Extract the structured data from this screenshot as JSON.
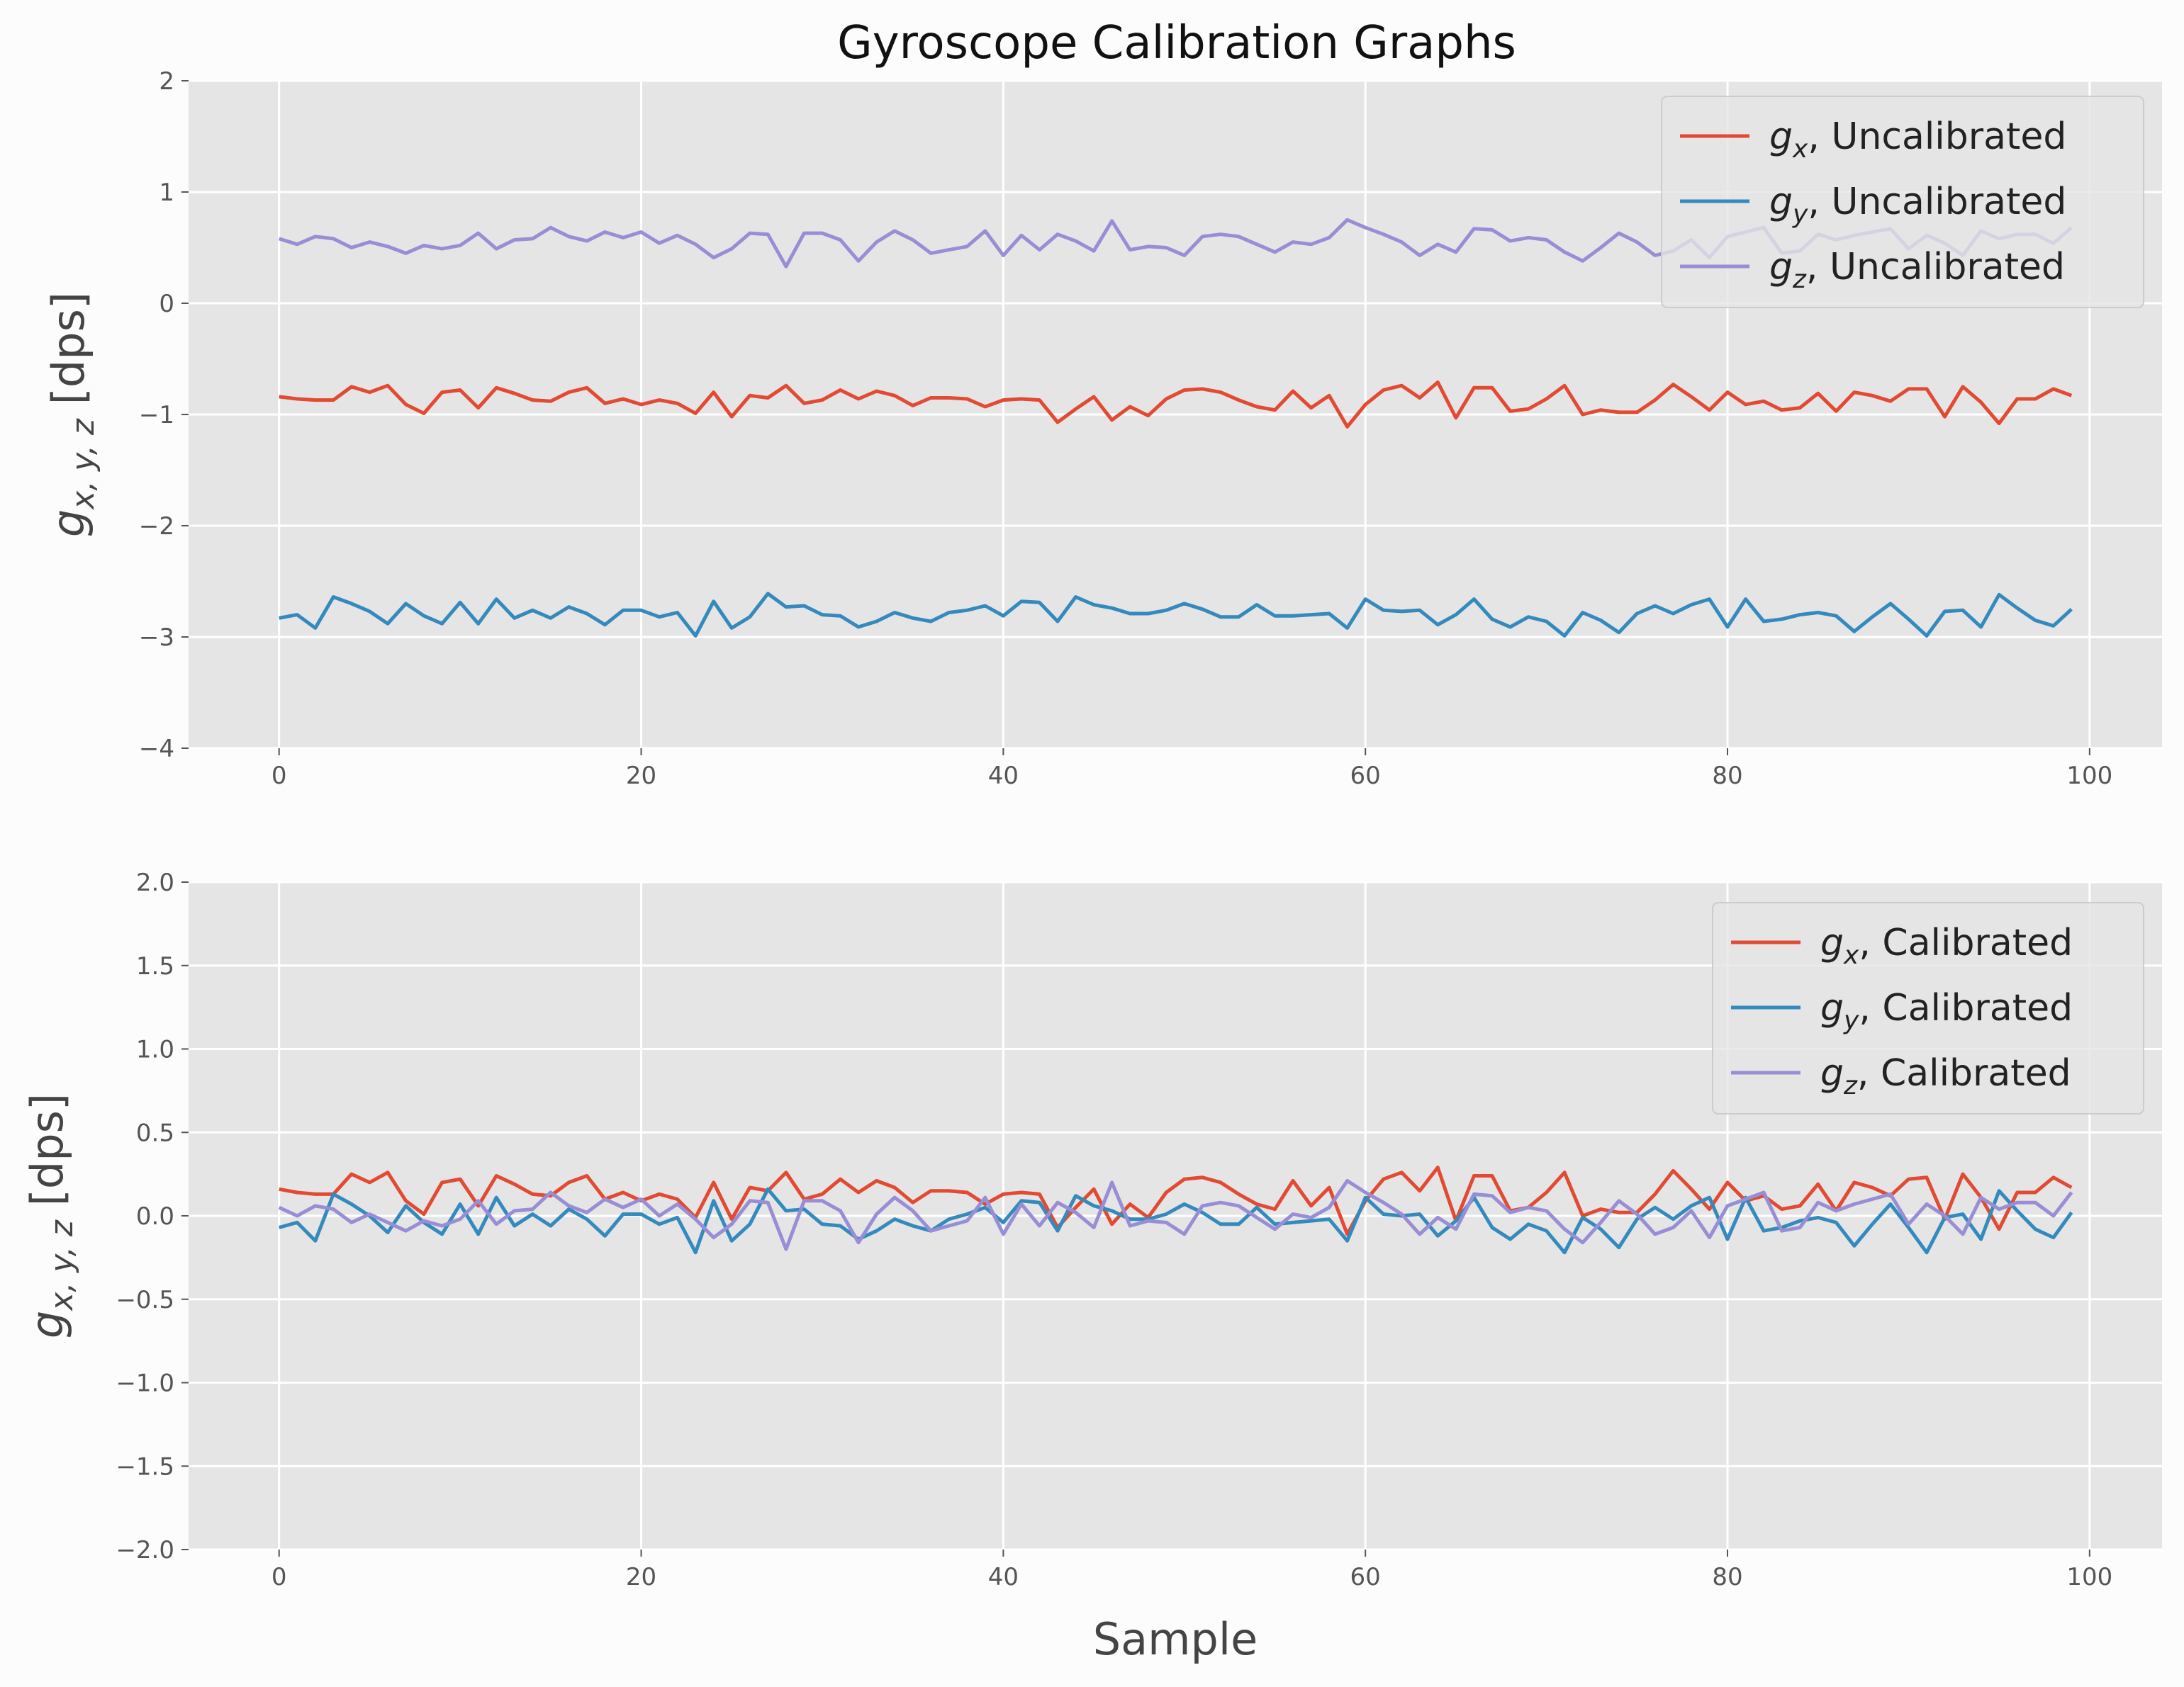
{
  "title": "Gyroscope Calibration Graphs",
  "colors": {
    "gx": "#E24A33",
    "gy": "#348ABD",
    "gz": "#988ED5",
    "plot_bg": "#E5E5E5",
    "grid": "#FFFFFF",
    "figure_bg": "#FCFCFC"
  },
  "chart_data": [
    {
      "type": "line",
      "xlabel": "",
      "ylabel": "g_{x,y,z} [dps]",
      "ylabel_parts": {
        "sym": "g",
        "sub": "x, y, z",
        "unit": "[dps]"
      },
      "xlim": [
        -5,
        104
      ],
      "ylim": [
        -4,
        2
      ],
      "xticks": [
        0,
        20,
        40,
        60,
        80,
        100
      ],
      "yticks": [
        2,
        1,
        0,
        -1,
        -2,
        -3,
        -4
      ],
      "ytick_labels": [
        "2",
        "1",
        "0",
        "−1",
        "−2",
        "−3",
        "−4"
      ],
      "xtick_labels": [
        "0",
        "20",
        "40",
        "60",
        "80",
        "100"
      ],
      "grid": true,
      "legend_position": "top-right",
      "x": [
        0,
        1,
        2,
        3,
        4,
        5,
        6,
        7,
        8,
        9,
        10,
        11,
        12,
        13,
        14,
        15,
        16,
        17,
        18,
        19,
        20,
        21,
        22,
        23,
        24,
        25,
        26,
        27,
        28,
        29,
        30,
        31,
        32,
        33,
        34,
        35,
        36,
        37,
        38,
        39,
        40,
        41,
        42,
        43,
        44,
        45,
        46,
        47,
        48,
        49,
        50,
        51,
        52,
        53,
        54,
        55,
        56,
        57,
        58,
        59,
        60,
        61,
        62,
        63,
        64,
        65,
        66,
        67,
        68,
        69,
        70,
        71,
        72,
        73,
        74,
        75,
        76,
        77,
        78,
        79,
        80,
        81,
        82,
        83,
        84,
        85,
        86,
        87,
        88,
        89,
        90,
        91,
        92,
        93,
        94,
        95,
        96,
        97,
        98,
        99
      ],
      "series": [
        {
          "name": "g_x, Uncalibrated",
          "label_sym": "g",
          "label_sub": "x",
          "label_rest": ", Uncalibrated",
          "color": "#E24A33",
          "values": [
            -0.84,
            -0.86,
            -0.87,
            -0.87,
            -0.75,
            -0.8,
            -0.74,
            -0.91,
            -0.99,
            -0.8,
            -0.78,
            -0.94,
            -0.76,
            -0.81,
            -0.87,
            -0.88,
            -0.8,
            -0.76,
            -0.9,
            -0.86,
            -0.91,
            -0.87,
            -0.9,
            -0.99,
            -0.8,
            -1.02,
            -0.83,
            -0.85,
            -0.74,
            -0.9,
            -0.87,
            -0.78,
            -0.86,
            -0.79,
            -0.83,
            -0.92,
            -0.85,
            -0.85,
            -0.86,
            -0.93,
            -0.87,
            -0.86,
            -0.87,
            -1.07,
            -0.95,
            -0.84,
            -1.05,
            -0.93,
            -1.01,
            -0.86,
            -0.78,
            -0.77,
            -0.8,
            -0.87,
            -0.93,
            -0.96,
            -0.79,
            -0.94,
            -0.83,
            -1.11,
            -0.91,
            -0.78,
            -0.74,
            -0.85,
            -0.71,
            -1.03,
            -0.76,
            -0.76,
            -0.97,
            -0.95,
            -0.86,
            -0.74,
            -1.0,
            -0.96,
            -0.98,
            -0.98,
            -0.87,
            -0.73,
            -0.84,
            -0.96,
            -0.8,
            -0.91,
            -0.88,
            -0.96,
            -0.94,
            -0.81,
            -0.97,
            -0.8,
            -0.83,
            -0.88,
            -0.77,
            -0.77,
            -1.02,
            -0.75,
            -0.89,
            -1.08,
            -0.86,
            -0.86,
            -0.77,
            -0.83
          ]
        },
        {
          "name": "g_y, Uncalibrated",
          "label_sym": "g",
          "label_sub": "y",
          "label_rest": ", Uncalibrated",
          "color": "#348ABD",
          "values": [
            -2.83,
            -2.8,
            -2.92,
            -2.64,
            -2.7,
            -2.77,
            -2.88,
            -2.7,
            -2.81,
            -2.88,
            -2.69,
            -2.88,
            -2.66,
            -2.83,
            -2.76,
            -2.83,
            -2.73,
            -2.79,
            -2.89,
            -2.76,
            -2.76,
            -2.82,
            -2.78,
            -2.99,
            -2.68,
            -2.92,
            -2.82,
            -2.61,
            -2.73,
            -2.72,
            -2.8,
            -2.81,
            -2.91,
            -2.86,
            -2.78,
            -2.83,
            -2.86,
            -2.78,
            -2.76,
            -2.72,
            -2.81,
            -2.68,
            -2.69,
            -2.86,
            -2.64,
            -2.71,
            -2.74,
            -2.79,
            -2.79,
            -2.76,
            -2.7,
            -2.75,
            -2.82,
            -2.82,
            -2.71,
            -2.81,
            -2.81,
            -2.8,
            -2.79,
            -2.92,
            -2.66,
            -2.76,
            -2.77,
            -2.76,
            -2.89,
            -2.8,
            -2.66,
            -2.84,
            -2.91,
            -2.82,
            -2.86,
            -2.99,
            -2.78,
            -2.85,
            -2.96,
            -2.79,
            -2.72,
            -2.79,
            -2.71,
            -2.66,
            -2.91,
            -2.66,
            -2.86,
            -2.84,
            -2.8,
            -2.78,
            -2.81,
            -2.95,
            -2.82,
            -2.7,
            -2.84,
            -2.99,
            -2.77,
            -2.76,
            -2.91,
            -2.62,
            -2.74,
            -2.85,
            -2.9,
            -2.75
          ]
        },
        {
          "name": "g_z, Uncalibrated",
          "label_sym": "g",
          "label_sub": "z",
          "label_rest": ", Uncalibrated",
          "color": "#988ED5",
          "values": [
            0.58,
            0.53,
            0.6,
            0.58,
            0.5,
            0.55,
            0.51,
            0.45,
            0.52,
            0.49,
            0.52,
            0.63,
            0.49,
            0.57,
            0.58,
            0.68,
            0.6,
            0.56,
            0.64,
            0.59,
            0.64,
            0.54,
            0.61,
            0.53,
            0.41,
            0.49,
            0.63,
            0.62,
            0.33,
            0.63,
            0.63,
            0.57,
            0.38,
            0.55,
            0.65,
            0.57,
            0.45,
            0.48,
            0.51,
            0.65,
            0.43,
            0.61,
            0.48,
            0.62,
            0.56,
            0.47,
            0.74,
            0.48,
            0.51,
            0.5,
            0.43,
            0.6,
            0.62,
            0.6,
            0.53,
            0.46,
            0.55,
            0.53,
            0.59,
            0.75,
            0.68,
            0.62,
            0.55,
            0.43,
            0.53,
            0.46,
            0.67,
            0.66,
            0.56,
            0.59,
            0.57,
            0.46,
            0.38,
            0.5,
            0.63,
            0.55,
            0.43,
            0.47,
            0.57,
            0.41,
            0.6,
            0.64,
            0.68,
            0.45,
            0.47,
            0.62,
            0.57,
            0.61,
            0.64,
            0.67,
            0.49,
            0.61,
            0.54,
            0.43,
            0.65,
            0.58,
            0.62,
            0.62,
            0.54,
            0.68
          ]
        }
      ]
    },
    {
      "type": "line",
      "xlabel": "Sample",
      "ylabel": "g_{x,y,z} [dps]",
      "ylabel_parts": {
        "sym": "g",
        "sub": "x, y, z",
        "unit": "[dps]"
      },
      "xlim": [
        -5,
        104
      ],
      "ylim": [
        -2,
        2
      ],
      "xticks": [
        0,
        20,
        40,
        60,
        80,
        100
      ],
      "yticks": [
        2.0,
        1.5,
        1.0,
        0.5,
        0.0,
        -0.5,
        -1.0,
        -1.5,
        -2.0
      ],
      "ytick_labels": [
        "2.0",
        "1.5",
        "1.0",
        "0.5",
        "0.0",
        "−0.5",
        "−1.0",
        "−1.5",
        "−2.0"
      ],
      "xtick_labels": [
        "0",
        "20",
        "40",
        "60",
        "80",
        "100"
      ],
      "grid": true,
      "legend_position": "top-right",
      "x": [
        0,
        1,
        2,
        3,
        4,
        5,
        6,
        7,
        8,
        9,
        10,
        11,
        12,
        13,
        14,
        15,
        16,
        17,
        18,
        19,
        20,
        21,
        22,
        23,
        24,
        25,
        26,
        27,
        28,
        29,
        30,
        31,
        32,
        33,
        34,
        35,
        36,
        37,
        38,
        39,
        40,
        41,
        42,
        43,
        44,
        45,
        46,
        47,
        48,
        49,
        50,
        51,
        52,
        53,
        54,
        55,
        56,
        57,
        58,
        59,
        60,
        61,
        62,
        63,
        64,
        65,
        66,
        67,
        68,
        69,
        70,
        71,
        72,
        73,
        74,
        75,
        76,
        77,
        78,
        79,
        80,
        81,
        82,
        83,
        84,
        85,
        86,
        87,
        88,
        89,
        90,
        91,
        92,
        93,
        94,
        95,
        96,
        97,
        98,
        99
      ],
      "series": [
        {
          "name": "g_x, Calibrated",
          "label_sym": "g",
          "label_sub": "x",
          "label_rest": ", Calibrated",
          "color": "#E24A33",
          "values": [
            0.16,
            0.14,
            0.13,
            0.13,
            0.25,
            0.2,
            0.26,
            0.09,
            0.01,
            0.2,
            0.22,
            0.06,
            0.24,
            0.19,
            0.13,
            0.12,
            0.2,
            0.24,
            0.1,
            0.14,
            0.09,
            0.13,
            0.1,
            -0.01,
            0.2,
            -0.02,
            0.17,
            0.15,
            0.26,
            0.1,
            0.13,
            0.22,
            0.14,
            0.21,
            0.17,
            0.08,
            0.15,
            0.15,
            0.14,
            0.07,
            0.13,
            0.14,
            0.13,
            -0.07,
            0.05,
            0.16,
            -0.05,
            0.07,
            -0.01,
            0.14,
            0.22,
            0.23,
            0.2,
            0.13,
            0.07,
            0.04,
            0.21,
            0.06,
            0.17,
            -0.11,
            0.09,
            0.22,
            0.26,
            0.15,
            0.29,
            -0.03,
            0.24,
            0.24,
            0.03,
            0.05,
            0.14,
            0.26,
            0.0,
            0.04,
            0.02,
            0.02,
            0.13,
            0.27,
            0.16,
            0.04,
            0.2,
            0.09,
            0.12,
            0.04,
            0.06,
            0.19,
            0.03,
            0.2,
            0.17,
            0.12,
            0.22,
            0.23,
            -0.02,
            0.25,
            0.11,
            -0.08,
            0.14,
            0.14,
            0.23,
            0.17
          ]
        },
        {
          "name": "g_y, Calibrated",
          "label_sym": "g",
          "label_sub": "y",
          "label_rest": ", Calibrated",
          "color": "#348ABD",
          "values": [
            -0.07,
            -0.04,
            -0.15,
            0.13,
            0.07,
            0.0,
            -0.1,
            0.06,
            -0.04,
            -0.11,
            0.07,
            -0.11,
            0.11,
            -0.06,
            0.01,
            -0.06,
            0.04,
            -0.02,
            -0.12,
            0.01,
            0.01,
            -0.05,
            -0.01,
            -0.22,
            0.09,
            -0.15,
            -0.05,
            0.16,
            0.03,
            0.04,
            -0.05,
            -0.06,
            -0.14,
            -0.09,
            -0.02,
            -0.06,
            -0.09,
            -0.02,
            0.01,
            0.05,
            -0.04,
            0.09,
            0.08,
            -0.09,
            0.12,
            0.06,
            0.03,
            -0.02,
            -0.02,
            0.01,
            0.07,
            0.02,
            -0.05,
            -0.05,
            0.05,
            -0.05,
            -0.04,
            -0.03,
            -0.02,
            -0.15,
            0.11,
            0.01,
            0.0,
            0.01,
            -0.12,
            -0.03,
            0.11,
            -0.07,
            -0.14,
            -0.05,
            -0.09,
            -0.22,
            -0.01,
            -0.08,
            -0.19,
            -0.02,
            0.05,
            -0.02,
            0.06,
            0.11,
            -0.14,
            0.11,
            -0.09,
            -0.07,
            -0.03,
            -0.01,
            -0.04,
            -0.18,
            -0.05,
            0.07,
            -0.07,
            -0.22,
            -0.01,
            0.01,
            -0.14,
            0.15,
            0.03,
            -0.08,
            -0.13,
            0.02
          ]
        },
        {
          "name": "g_z, Calibrated",
          "label_sym": "g",
          "label_sub": "z",
          "label_rest": ", Calibrated",
          "color": "#988ED5",
          "values": [
            0.05,
            0.0,
            0.06,
            0.04,
            -0.04,
            0.01,
            -0.04,
            -0.09,
            -0.03,
            -0.06,
            -0.02,
            0.09,
            -0.05,
            0.03,
            0.04,
            0.14,
            0.06,
            0.02,
            0.1,
            0.05,
            0.1,
            0.0,
            0.07,
            -0.02,
            -0.13,
            -0.05,
            0.09,
            0.08,
            -0.2,
            0.09,
            0.09,
            0.03,
            -0.16,
            0.01,
            0.11,
            0.03,
            -0.09,
            -0.06,
            -0.03,
            0.11,
            -0.11,
            0.07,
            -0.06,
            0.08,
            0.02,
            -0.07,
            0.2,
            -0.06,
            -0.03,
            -0.04,
            -0.11,
            0.06,
            0.08,
            0.06,
            -0.01,
            -0.08,
            0.01,
            -0.01,
            0.05,
            0.21,
            0.14,
            0.08,
            0.01,
            -0.11,
            -0.01,
            -0.08,
            0.13,
            0.12,
            0.02,
            0.05,
            0.03,
            -0.08,
            -0.16,
            -0.04,
            0.09,
            0.01,
            -0.11,
            -0.07,
            0.03,
            -0.13,
            0.06,
            0.1,
            0.14,
            -0.09,
            -0.07,
            0.08,
            0.03,
            0.07,
            0.1,
            0.13,
            -0.05,
            0.07,
            0.0,
            -0.11,
            0.11,
            0.04,
            0.08,
            0.08,
            0.0,
            0.14
          ]
        }
      ]
    }
  ]
}
